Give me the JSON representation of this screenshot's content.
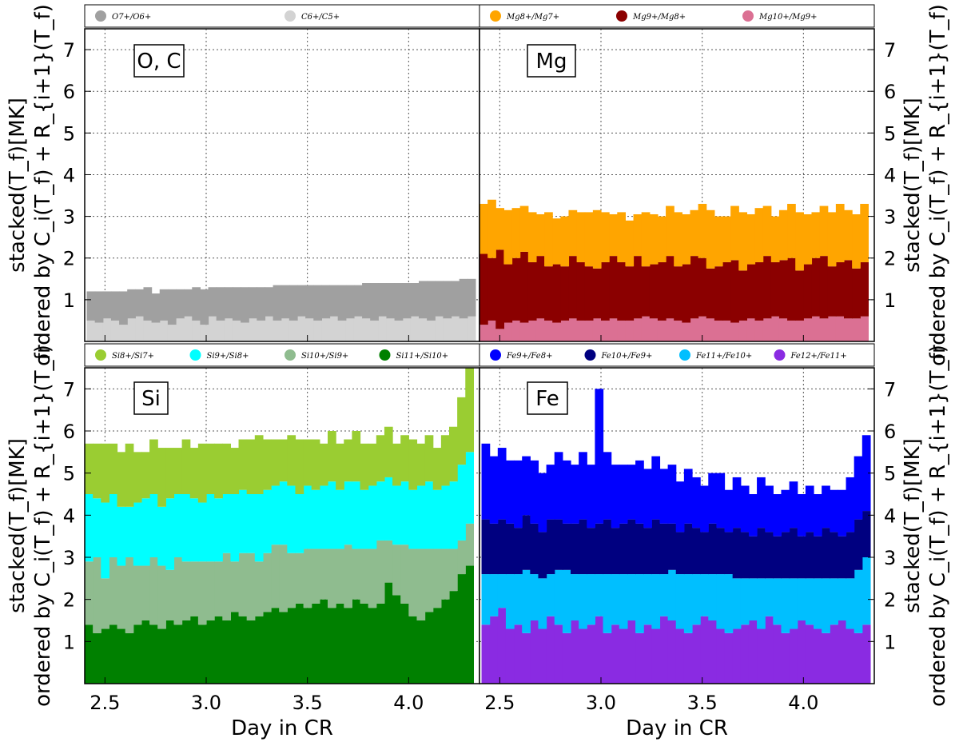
{
  "chart_data": [
    {
      "type": "bar",
      "panel": "O, C",
      "title": "O, C",
      "stacked": true,
      "xlabel": "",
      "ylabel": "stacked(T_f)[MK]",
      "ylabel2": "ordered by C_i(T_f) + R_{i+1}(T_f)",
      "xlim": [
        2.4,
        4.35
      ],
      "ylim": [
        0,
        7.5
      ],
      "x_ticks": [
        "2.5",
        "3.0",
        "3.5",
        "4.0"
      ],
      "y_ticks": [
        "1",
        "2",
        "3",
        "4",
        "5",
        "6",
        "7"
      ],
      "legend": [
        {
          "label": "O7+/O6+",
          "color": "#a0a0a0"
        },
        {
          "label": "C6+/C5+",
          "color": "#d3d3d3"
        }
      ],
      "x": [
        2.43,
        2.47,
        2.51,
        2.55,
        2.59,
        2.63,
        2.67,
        2.71,
        2.75,
        2.79,
        2.83,
        2.87,
        2.91,
        2.95,
        2.99,
        3.03,
        3.07,
        3.11,
        3.15,
        3.19,
        3.23,
        3.27,
        3.31,
        3.35,
        3.39,
        3.43,
        3.47,
        3.51,
        3.55,
        3.59,
        3.63,
        3.67,
        3.71,
        3.75,
        3.79,
        3.83,
        3.87,
        3.91,
        3.95,
        3.99,
        4.03,
        4.07,
        4.11,
        4.15,
        4.19,
        4.23,
        4.27,
        4.31
      ],
      "series": [
        {
          "name": "C6+/C5+",
          "color": "#d3d3d3",
          "values": [
            0.5,
            0.45,
            0.55,
            0.5,
            0.4,
            0.55,
            0.6,
            0.5,
            0.45,
            0.5,
            0.4,
            0.55,
            0.6,
            0.5,
            0.4,
            0.6,
            0.5,
            0.55,
            0.5,
            0.45,
            0.55,
            0.5,
            0.6,
            0.5,
            0.55,
            0.5,
            0.6,
            0.55,
            0.5,
            0.55,
            0.6,
            0.5,
            0.55,
            0.6,
            0.55,
            0.5,
            0.6,
            0.55,
            0.5,
            0.55,
            0.6,
            0.55,
            0.5,
            0.6,
            0.55,
            0.6,
            0.55,
            0.6
          ]
        },
        {
          "name": "O7+/O6+",
          "color": "#a0a0a0",
          "values": [
            0.7,
            0.75,
            0.65,
            0.7,
            0.8,
            0.7,
            0.65,
            0.8,
            0.7,
            0.75,
            0.85,
            0.7,
            0.65,
            0.8,
            0.85,
            0.7,
            0.8,
            0.75,
            0.8,
            0.85,
            0.75,
            0.8,
            0.7,
            0.85,
            0.8,
            0.85,
            0.75,
            0.8,
            0.85,
            0.8,
            0.75,
            0.85,
            0.8,
            0.75,
            0.85,
            0.9,
            0.8,
            0.85,
            0.9,
            0.85,
            0.8,
            0.9,
            0.95,
            0.85,
            0.9,
            0.85,
            0.95,
            0.9
          ]
        }
      ]
    },
    {
      "type": "bar",
      "panel": "Mg",
      "title": "Mg",
      "stacked": true,
      "xlabel": "",
      "ylabel": "stacked(T_f)[MK]",
      "ylabel2": "ordered by C_i(T_f) + R_{i+1}(T_f)",
      "xlim": [
        2.4,
        4.35
      ],
      "ylim": [
        0,
        7.5
      ],
      "x_ticks": [
        "2.5",
        "3.0",
        "3.5",
        "4.0"
      ],
      "y_ticks": [
        "1",
        "2",
        "3",
        "4",
        "5",
        "6",
        "7"
      ],
      "legend": [
        {
          "label": "Mg8+/Mg7+",
          "color": "#ffa500"
        },
        {
          "label": "Mg9+/Mg8+",
          "color": "#8b0000"
        },
        {
          "label": "Mg10+/Mg9+",
          "color": "#db7093"
        }
      ],
      "x": [
        2.42,
        2.46,
        2.5,
        2.54,
        2.58,
        2.62,
        2.66,
        2.7,
        2.74,
        2.78,
        2.82,
        2.86,
        2.9,
        2.94,
        2.98,
        3.02,
        3.06,
        3.1,
        3.14,
        3.18,
        3.22,
        3.26,
        3.3,
        3.34,
        3.38,
        3.42,
        3.46,
        3.5,
        3.54,
        3.58,
        3.62,
        3.66,
        3.7,
        3.74,
        3.78,
        3.82,
        3.86,
        3.9,
        3.94,
        3.98,
        4.02,
        4.06,
        4.1,
        4.14,
        4.18,
        4.22,
        4.26,
        4.3
      ],
      "series": [
        {
          "name": "Mg10+/Mg9+",
          "color": "#db7093",
          "values": [
            0.4,
            0.5,
            0.3,
            0.45,
            0.5,
            0.45,
            0.5,
            0.55,
            0.5,
            0.45,
            0.5,
            0.55,
            0.5,
            0.5,
            0.55,
            0.5,
            0.55,
            0.5,
            0.5,
            0.55,
            0.6,
            0.55,
            0.5,
            0.55,
            0.5,
            0.45,
            0.55,
            0.6,
            0.55,
            0.5,
            0.5,
            0.45,
            0.5,
            0.55,
            0.5,
            0.55,
            0.6,
            0.55,
            0.5,
            0.5,
            0.55,
            0.6,
            0.55,
            0.6,
            0.6,
            0.55,
            0.55,
            0.6
          ]
        },
        {
          "name": "Mg9+/Mg8+",
          "color": "#8b0000",
          "values": [
            1.7,
            1.5,
            1.9,
            1.4,
            1.5,
            1.7,
            1.4,
            1.5,
            1.3,
            1.4,
            1.3,
            1.5,
            1.4,
            1.3,
            1.2,
            1.4,
            1.5,
            1.4,
            1.3,
            1.5,
            1.2,
            1.3,
            1.4,
            1.5,
            1.3,
            1.4,
            1.5,
            1.4,
            1.2,
            1.3,
            1.4,
            1.5,
            1.2,
            1.3,
            1.4,
            1.5,
            1.3,
            1.4,
            1.5,
            1.2,
            1.3,
            1.4,
            1.5,
            1.2,
            1.3,
            1.4,
            1.2,
            1.3
          ]
        },
        {
          "name": "Mg8+/Mg7+",
          "color": "#ffa500",
          "values": [
            1.2,
            1.4,
            1.0,
            1.3,
            1.2,
            1.1,
            1.2,
            1.0,
            1.3,
            1.1,
            1.2,
            1.1,
            1.2,
            1.3,
            1.4,
            1.2,
            1.0,
            1.2,
            1.1,
            1.0,
            1.3,
            1.2,
            1.1,
            1.2,
            1.3,
            1.2,
            1.1,
            1.3,
            1.4,
            1.2,
            1.1,
            1.3,
            1.4,
            1.2,
            1.3,
            1.2,
            1.1,
            1.2,
            1.3,
            1.4,
            1.2,
            1.1,
            1.2,
            1.3,
            1.4,
            1.2,
            1.3,
            1.4
          ]
        }
      ]
    },
    {
      "type": "bar",
      "panel": "Si",
      "title": "Si",
      "stacked": true,
      "xlabel": "Day in CR",
      "ylabel": "stacked(T_f)[MK]",
      "ylabel2": "ordered by C_i(T_f) + R_{i+1}(T_f)",
      "xlim": [
        2.4,
        4.35
      ],
      "ylim": [
        0,
        7.5
      ],
      "x_ticks": [
        "2.5",
        "3.0",
        "3.5",
        "4.0"
      ],
      "y_ticks": [
        "1",
        "2",
        "3",
        "4",
        "5",
        "6",
        "7"
      ],
      "legend": [
        {
          "label": "Si8+/Si7+",
          "color": "#9acd32"
        },
        {
          "label": "Si9+/Si8+",
          "color": "#00ffff"
        },
        {
          "label": "Si10+/Si9+",
          "color": "#8fbc8f"
        },
        {
          "label": "Si11+/Si10+",
          "color": "#008000"
        }
      ],
      "x": [
        2.42,
        2.46,
        2.5,
        2.54,
        2.58,
        2.62,
        2.66,
        2.7,
        2.74,
        2.78,
        2.82,
        2.86,
        2.9,
        2.94,
        2.98,
        3.02,
        3.06,
        3.1,
        3.14,
        3.18,
        3.22,
        3.26,
        3.3,
        3.34,
        3.38,
        3.42,
        3.46,
        3.5,
        3.54,
        3.58,
        3.62,
        3.66,
        3.7,
        3.74,
        3.78,
        3.82,
        3.86,
        3.9,
        3.94,
        3.98,
        4.02,
        4.06,
        4.1,
        4.14,
        4.18,
        4.22,
        4.26,
        4.3
      ],
      "series": [
        {
          "name": "Si11+/Si10+",
          "color": "#008000",
          "values": [
            1.4,
            1.2,
            1.3,
            1.4,
            1.3,
            1.2,
            1.4,
            1.5,
            1.4,
            1.3,
            1.5,
            1.4,
            1.5,
            1.6,
            1.4,
            1.5,
            1.6,
            1.5,
            1.7,
            1.6,
            1.5,
            1.6,
            1.7,
            1.8,
            1.7,
            1.8,
            1.9,
            1.8,
            1.9,
            2.0,
            1.8,
            1.9,
            1.8,
            2.0,
            1.9,
            1.8,
            1.9,
            2.4,
            2.1,
            1.9,
            1.6,
            1.5,
            1.7,
            1.8,
            2.0,
            2.2,
            2.6,
            2.8
          ]
        },
        {
          "name": "Si10+/Si9+",
          "color": "#8fbc8f",
          "values": [
            1.5,
            1.8,
            1.2,
            1.6,
            1.5,
            1.8,
            1.4,
            1.3,
            1.6,
            1.5,
            1.2,
            1.6,
            1.4,
            1.3,
            1.5,
            1.4,
            1.3,
            1.6,
            1.2,
            1.5,
            1.6,
            1.3,
            1.4,
            1.5,
            1.6,
            1.3,
            1.2,
            1.4,
            1.3,
            1.2,
            1.4,
            1.3,
            1.5,
            1.2,
            1.3,
            1.4,
            1.5,
            1.0,
            1.2,
            1.4,
            1.6,
            1.7,
            1.5,
            1.4,
            1.2,
            1.0,
            0.8,
            1.0
          ]
        },
        {
          "name": "Si9+/Si8+",
          "color": "#00ffff",
          "values": [
            1.6,
            1.4,
            1.8,
            1.5,
            1.4,
            1.2,
            1.5,
            1.6,
            1.5,
            1.4,
            1.7,
            1.5,
            1.6,
            1.5,
            1.4,
            1.6,
            1.5,
            1.4,
            1.6,
            1.5,
            1.4,
            1.6,
            1.5,
            1.4,
            1.5,
            1.6,
            1.4,
            1.5,
            1.4,
            1.5,
            1.6,
            1.4,
            1.5,
            1.6,
            1.4,
            1.5,
            1.4,
            1.5,
            1.4,
            1.5,
            1.4,
            1.5,
            1.6,
            1.4,
            1.5,
            1.6,
            1.8,
            1.7
          ]
        },
        {
          "name": "Si8+/Si7+",
          "color": "#9acd32",
          "values": [
            1.2,
            1.3,
            1.4,
            1.2,
            1.3,
            1.5,
            1.2,
            1.1,
            1.3,
            1.4,
            1.2,
            1.1,
            1.3,
            1.2,
            1.4,
            1.2,
            1.3,
            1.2,
            1.1,
            1.2,
            1.3,
            1.4,
            1.2,
            1.1,
            1.0,
            1.2,
            1.3,
            1.1,
            1.2,
            1.0,
            1.2,
            1.1,
            1.0,
            1.2,
            1.1,
            1.0,
            1.1,
            1.2,
            1.0,
            1.1,
            1.2,
            1.0,
            1.1,
            1.0,
            1.2,
            1.3,
            1.6,
            2.0
          ]
        }
      ]
    },
    {
      "type": "bar",
      "panel": "Fe",
      "title": "Fe",
      "stacked": true,
      "xlabel": "Day in CR",
      "ylabel": "stacked(T_f)[MK]",
      "ylabel2": "ordered by C_i(T_f) + R_{i+1}(T_f)",
      "xlim": [
        2.4,
        4.35
      ],
      "ylim": [
        0,
        7.5
      ],
      "x_ticks": [
        "2.5",
        "3.0",
        "3.5",
        "4.0"
      ],
      "y_ticks": [
        "1",
        "2",
        "3",
        "4",
        "5",
        "6",
        "7"
      ],
      "legend": [
        {
          "label": "Fe9+/Fe8+",
          "color": "#0000ff"
        },
        {
          "label": "Fe10+/Fe9+",
          "color": "#000080"
        },
        {
          "label": "Fe11+/Fe10+",
          "color": "#00bfff"
        },
        {
          "label": "Fe12+/Fe11+",
          "color": "#8a2be2"
        }
      ],
      "x": [
        2.43,
        2.47,
        2.51,
        2.55,
        2.59,
        2.63,
        2.67,
        2.71,
        2.75,
        2.79,
        2.83,
        2.87,
        2.91,
        2.95,
        2.99,
        3.03,
        3.07,
        3.11,
        3.15,
        3.19,
        3.23,
        3.27,
        3.31,
        3.35,
        3.39,
        3.43,
        3.47,
        3.51,
        3.55,
        3.59,
        3.63,
        3.67,
        3.71,
        3.75,
        3.79,
        3.83,
        3.87,
        3.91,
        3.95,
        3.99,
        4.03,
        4.07,
        4.11,
        4.15,
        4.19,
        4.23,
        4.27,
        4.31
      ],
      "series": [
        {
          "name": "Fe12+/Fe11+",
          "color": "#8a2be2",
          "values": [
            1.4,
            1.6,
            1.8,
            1.3,
            1.4,
            1.2,
            1.5,
            1.3,
            1.6,
            1.4,
            1.2,
            1.5,
            1.3,
            1.4,
            1.6,
            1.2,
            1.4,
            1.3,
            1.5,
            1.2,
            1.4,
            1.3,
            1.6,
            1.5,
            1.3,
            1.2,
            1.4,
            1.6,
            1.5,
            1.3,
            1.2,
            1.3,
            1.4,
            1.5,
            1.3,
            1.6,
            1.4,
            1.2,
            1.3,
            1.5,
            1.4,
            1.3,
            1.2,
            1.4,
            1.5,
            1.3,
            1.2,
            1.4
          ]
        },
        {
          "name": "Fe11+/Fe10+",
          "color": "#00bfff",
          "values": [
            1.2,
            1.0,
            0.8,
            1.3,
            1.2,
            1.5,
            1.1,
            1.2,
            1.0,
            1.3,
            1.5,
            1.1,
            1.3,
            1.2,
            1.0,
            1.4,
            1.2,
            1.3,
            1.1,
            1.4,
            1.2,
            1.3,
            1.0,
            1.2,
            1.3,
            1.4,
            1.2,
            1.0,
            1.1,
            1.3,
            1.4,
            1.2,
            1.1,
            1.0,
            1.2,
            0.9,
            1.1,
            1.3,
            1.2,
            1.0,
            1.1,
            1.2,
            1.3,
            1.1,
            1.0,
            1.2,
            1.5,
            1.6
          ]
        },
        {
          "name": "Fe10+/Fe9+",
          "color": "#000080",
          "values": [
            1.3,
            1.2,
            1.3,
            1.2,
            1.1,
            1.3,
            1.2,
            1.1,
            1.3,
            1.2,
            1.1,
            1.2,
            1.3,
            1.1,
            1.2,
            1.3,
            1.1,
            1.2,
            1.3,
            1.2,
            1.1,
            1.3,
            1.2,
            1.1,
            1.0,
            1.2,
            1.1,
            1.0,
            1.2,
            1.1,
            1.0,
            1.2,
            1.1,
            1.0,
            1.2,
            1.1,
            1.0,
            1.1,
            1.2,
            1.0,
            1.1,
            1.0,
            1.2,
            1.1,
            1.0,
            1.1,
            1.2,
            1.1
          ]
        },
        {
          "name": "Fe9+/Fe8+",
          "color": "#0000ff",
          "values": [
            1.8,
            1.6,
            1.7,
            1.5,
            1.6,
            1.4,
            1.5,
            1.4,
            1.3,
            1.6,
            1.5,
            1.4,
            1.6,
            1.5,
            3.2,
            1.6,
            1.5,
            1.4,
            1.3,
            1.5,
            1.4,
            1.5,
            1.3,
            1.4,
            1.2,
            1.3,
            1.2,
            1.1,
            1.2,
            1.3,
            1.0,
            1.2,
            1.1,
            1.0,
            1.2,
            1.1,
            1.0,
            1.0,
            1.1,
            1.0,
            1.1,
            1.0,
            1.0,
            1.0,
            1.1,
            1.3,
            1.5,
            1.8
          ]
        }
      ]
    }
  ]
}
